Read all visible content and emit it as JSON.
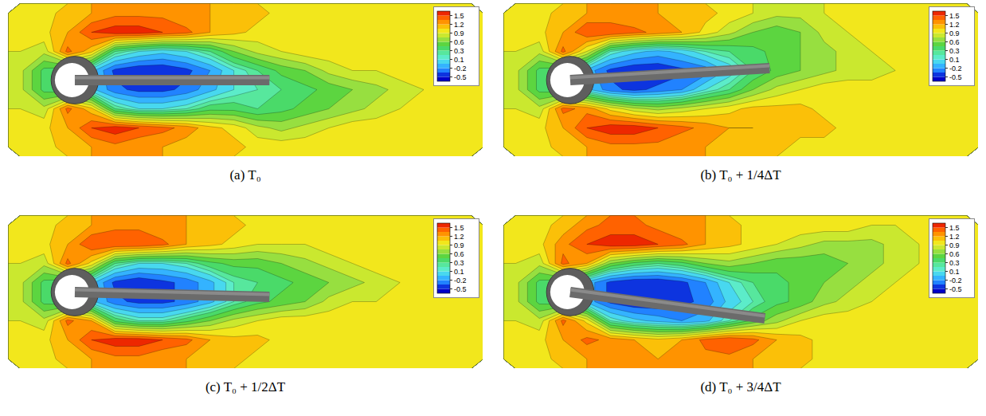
{
  "chart_data": [
    {
      "type": "contour",
      "caption": "(a) T₀",
      "xlim": [
        0,
        10
      ],
      "ylim": [
        -1.6,
        1.6
      ],
      "tick_labels": false,
      "cylinder": {
        "x": 1.4,
        "y": 0,
        "r": 0.5
      },
      "plate": {
        "x0": 1.4,
        "y0": 0,
        "x1": 5.5,
        "y1": 0.0
      },
      "values": [
        [
          1.0,
          1.0,
          1.1,
          1.2,
          1.3,
          1.3,
          1.3,
          1.2,
          1.2,
          1.1,
          1.1,
          1.0,
          1.0,
          1.0,
          1.0,
          1.0,
          1.0,
          1.0,
          1.0,
          1.0
        ],
        [
          1.0,
          1.0,
          1.2,
          1.5,
          1.6,
          1.6,
          1.5,
          1.4,
          1.2,
          1.1,
          1.0,
          1.0,
          1.0,
          1.0,
          1.0,
          1.0,
          1.0,
          1.0,
          1.0,
          1.0
        ],
        [
          0.9,
          0.8,
          1.4,
          1.1,
          0.3,
          0.1,
          0.0,
          0.1,
          0.3,
          0.6,
          0.8,
          0.9,
          1.0,
          1.0,
          1.0,
          1.0,
          1.0,
          1.0,
          1.0,
          1.0
        ],
        [
          0.8,
          0.4,
          0.3,
          0.0,
          -0.4,
          -0.5,
          -0.5,
          -0.4,
          -0.2,
          0.1,
          0.3,
          0.5,
          0.6,
          0.8,
          0.9,
          0.9,
          1.0,
          1.0,
          1.0,
          1.0
        ],
        [
          0.8,
          0.4,
          0.3,
          0.0,
          -0.3,
          -0.4,
          -0.4,
          -0.3,
          -0.1,
          0.1,
          0.2,
          0.3,
          0.4,
          0.5,
          0.6,
          0.7,
          0.8,
          0.9,
          0.9,
          1.0
        ],
        [
          0.9,
          0.8,
          1.4,
          1.1,
          0.3,
          0.1,
          0.1,
          0.2,
          0.4,
          0.4,
          0.3,
          0.4,
          0.5,
          0.6,
          0.7,
          0.8,
          0.9,
          0.9,
          1.0,
          1.0
        ],
        [
          1.0,
          1.0,
          1.2,
          1.5,
          1.6,
          1.5,
          1.4,
          1.3,
          1.1,
          1.0,
          0.8,
          0.7,
          0.8,
          0.9,
          1.0,
          1.0,
          1.0,
          1.0,
          1.0,
          1.0
        ],
        [
          1.0,
          1.0,
          1.1,
          1.2,
          1.3,
          1.2,
          1.2,
          1.1,
          1.1,
          1.1,
          1.0,
          1.0,
          1.0,
          1.0,
          1.0,
          1.0,
          1.0,
          1.0,
          1.0,
          1.0
        ]
      ],
      "colorbar": {
        "range": [
          -0.6,
          1.6
        ],
        "ticks": [
          1.5,
          1.2,
          0.9,
          0.6,
          0.3,
          0.1,
          -0.2,
          -0.5
        ],
        "levels": [
          -0.5,
          -0.35,
          -0.2,
          -0.05,
          0.1,
          0.2,
          0.3,
          0.45,
          0.6,
          0.75,
          0.9,
          1.05,
          1.2,
          1.35,
          1.5
        ],
        "colors": [
          "#0000c8",
          "#2080ff",
          "#40d0ff",
          "#60f0c0",
          "#40d040",
          "#a0e040",
          "#f0f020",
          "#ffb000",
          "#ff6000",
          "#e00000"
        ]
      }
    },
    {
      "type": "contour",
      "caption": "(b) T₀ + 1/4ΔT",
      "xlim": [
        0,
        10
      ],
      "ylim": [
        -1.6,
        1.6
      ],
      "tick_labels": false,
      "cylinder": {
        "x": 1.4,
        "y": 0,
        "r": 0.5
      },
      "plate": {
        "x0": 1.4,
        "y0": 0,
        "x1": 5.6,
        "y1": 0.25
      },
      "values": [
        [
          1.0,
          1.0,
          1.1,
          1.2,
          1.2,
          1.2,
          1.2,
          1.1,
          1.1,
          1.0,
          0.9,
          0.8,
          0.8,
          0.9,
          1.0,
          1.0,
          1.0,
          1.0,
          1.0,
          1.0
        ],
        [
          1.0,
          1.0,
          1.2,
          1.5,
          1.5,
          1.4,
          1.3,
          1.2,
          1.0,
          0.8,
          0.6,
          0.5,
          0.6,
          0.8,
          0.9,
          1.0,
          1.0,
          1.0,
          1.0,
          1.0
        ],
        [
          0.9,
          0.8,
          1.4,
          0.9,
          0.2,
          0.0,
          -0.1,
          0.0,
          0.2,
          0.3,
          0.4,
          0.5,
          0.6,
          0.7,
          0.8,
          0.9,
          0.9,
          1.0,
          1.0,
          1.0
        ],
        [
          0.8,
          0.4,
          0.3,
          -0.1,
          -0.4,
          -0.5,
          -0.5,
          -0.4,
          -0.3,
          0.0,
          0.3,
          0.5,
          0.6,
          0.7,
          0.8,
          0.8,
          0.9,
          1.0,
          1.0,
          1.0
        ],
        [
          0.8,
          0.4,
          0.3,
          0.0,
          -0.3,
          -0.4,
          -0.3,
          -0.2,
          0.1,
          0.3,
          0.6,
          0.8,
          0.9,
          1.0,
          1.0,
          1.0,
          1.0,
          1.0,
          1.0,
          1.0
        ],
        [
          0.9,
          0.8,
          1.4,
          1.3,
          1.0,
          0.8,
          0.7,
          0.8,
          0.9,
          1.0,
          1.1,
          1.1,
          1.1,
          1.0,
          1.0,
          1.0,
          1.0,
          1.0,
          1.0,
          1.0
        ],
        [
          1.0,
          1.0,
          1.2,
          1.5,
          1.6,
          1.6,
          1.5,
          1.4,
          1.3,
          1.2,
          1.2,
          1.1,
          1.1,
          1.1,
          1.0,
          1.0,
          1.0,
          1.0,
          1.0,
          1.0
        ],
        [
          1.0,
          1.0,
          1.1,
          1.2,
          1.3,
          1.3,
          1.3,
          1.2,
          1.2,
          1.1,
          1.1,
          1.1,
          1.0,
          1.0,
          1.0,
          1.0,
          1.0,
          1.0,
          1.0,
          1.0
        ]
      ],
      "colorbar": {
        "range": [
          -0.6,
          1.6
        ],
        "ticks": [
          1.5,
          1.2,
          0.9,
          0.6,
          0.3,
          0.1,
          -0.2,
          -0.5
        ],
        "levels": [
          -0.5,
          -0.35,
          -0.2,
          -0.05,
          0.1,
          0.2,
          0.3,
          0.45,
          0.6,
          0.75,
          0.9,
          1.05,
          1.2,
          1.35,
          1.5
        ],
        "colors": [
          "#0000c8",
          "#2080ff",
          "#40d0ff",
          "#60f0c0",
          "#40d040",
          "#a0e040",
          "#f0f020",
          "#ffb000",
          "#ff6000",
          "#e00000"
        ]
      }
    },
    {
      "type": "contour",
      "caption": "(c) T₀ + 1/2ΔT",
      "xlim": [
        0,
        10
      ],
      "ylim": [
        -1.6,
        1.6
      ],
      "tick_labels": false,
      "cylinder": {
        "x": 1.4,
        "y": 0,
        "r": 0.5
      },
      "plate": {
        "x0": 1.4,
        "y0": 0,
        "x1": 5.5,
        "y1": -0.1
      },
      "values": [
        [
          1.0,
          1.0,
          1.1,
          1.2,
          1.3,
          1.3,
          1.2,
          1.2,
          1.1,
          1.1,
          1.0,
          1.0,
          1.0,
          1.0,
          1.0,
          1.0,
          1.0,
          1.0,
          1.0,
          1.0
        ],
        [
          1.0,
          1.0,
          1.2,
          1.5,
          1.5,
          1.5,
          1.4,
          1.2,
          1.1,
          1.0,
          0.9,
          0.9,
          0.9,
          1.0,
          1.0,
          1.0,
          1.0,
          1.0,
          1.0,
          1.0
        ],
        [
          0.9,
          0.8,
          1.4,
          1.0,
          0.3,
          0.1,
          0.1,
          0.2,
          0.4,
          0.5,
          0.5,
          0.6,
          0.7,
          0.8,
          0.9,
          1.0,
          1.0,
          1.0,
          1.0,
          1.0
        ],
        [
          0.8,
          0.4,
          0.3,
          0.0,
          -0.4,
          -0.5,
          -0.4,
          -0.3,
          -0.1,
          0.2,
          0.3,
          0.4,
          0.5,
          0.6,
          0.7,
          0.8,
          0.9,
          1.0,
          1.0,
          1.0
        ],
        [
          0.8,
          0.4,
          0.3,
          0.0,
          -0.3,
          -0.4,
          -0.4,
          -0.3,
          -0.1,
          0.2,
          0.4,
          0.5,
          0.6,
          0.8,
          0.9,
          0.9,
          1.0,
          1.0,
          1.0,
          1.0
        ],
        [
          0.9,
          0.8,
          1.4,
          1.2,
          0.4,
          0.2,
          0.2,
          0.4,
          0.6,
          0.8,
          0.9,
          1.0,
          1.0,
          1.0,
          1.0,
          1.0,
          1.0,
          1.0,
          1.0,
          1.0
        ],
        [
          1.0,
          1.0,
          1.2,
          1.5,
          1.6,
          1.6,
          1.5,
          1.4,
          1.2,
          1.1,
          1.1,
          1.0,
          1.0,
          1.0,
          1.0,
          1.0,
          1.0,
          1.0,
          1.0,
          1.0
        ],
        [
          1.0,
          1.0,
          1.1,
          1.2,
          1.3,
          1.3,
          1.2,
          1.2,
          1.1,
          1.1,
          1.0,
          1.0,
          1.0,
          1.0,
          1.0,
          1.0,
          1.0,
          1.0,
          1.0,
          1.0
        ]
      ],
      "colorbar": {
        "range": [
          -0.6,
          1.6
        ],
        "ticks": [
          1.5,
          1.2,
          0.9,
          0.6,
          0.3,
          0.1,
          -0.2,
          -0.5
        ],
        "levels": [
          -0.5,
          -0.35,
          -0.2,
          -0.05,
          0.1,
          0.2,
          0.3,
          0.45,
          0.6,
          0.75,
          0.9,
          1.05,
          1.2,
          1.35,
          1.5
        ],
        "colors": [
          "#0000c8",
          "#2080ff",
          "#40d0ff",
          "#60f0c0",
          "#40d040",
          "#a0e040",
          "#f0f020",
          "#ffb000",
          "#ff6000",
          "#e00000"
        ]
      }
    },
    {
      "type": "contour",
      "caption": "(d) T₀ + 3/4ΔT",
      "xlim": [
        0,
        10
      ],
      "ylim": [
        -1.6,
        1.6
      ],
      "tick_labels": false,
      "cylinder": {
        "x": 1.4,
        "y": 0,
        "r": 0.5
      },
      "plate": {
        "x0": 1.4,
        "y0": 0,
        "x1": 5.5,
        "y1": -0.55
      },
      "values": [
        [
          1.0,
          1.0,
          1.1,
          1.3,
          1.4,
          1.4,
          1.3,
          1.2,
          1.2,
          1.1,
          1.0,
          1.0,
          1.0,
          1.0,
          1.0,
          0.9,
          0.9,
          0.9,
          1.0,
          1.0
        ],
        [
          1.0,
          1.0,
          1.3,
          1.5,
          1.6,
          1.6,
          1.5,
          1.4,
          1.2,
          1.1,
          1.0,
          0.9,
          0.8,
          0.7,
          0.7,
          0.7,
          0.8,
          0.9,
          1.0,
          1.0
        ],
        [
          0.9,
          0.8,
          1.4,
          1.2,
          0.6,
          0.4,
          0.3,
          0.4,
          0.6,
          0.7,
          0.6,
          0.5,
          0.5,
          0.5,
          0.6,
          0.7,
          0.8,
          0.9,
          0.9,
          1.0
        ],
        [
          0.8,
          0.4,
          0.3,
          -0.1,
          -0.4,
          -0.5,
          -0.5,
          -0.4,
          -0.2,
          0.1,
          0.3,
          0.4,
          0.5,
          0.6,
          0.7,
          0.8,
          0.9,
          0.9,
          1.0,
          1.0
        ],
        [
          0.8,
          0.4,
          0.3,
          -0.1,
          -0.4,
          -0.5,
          -0.5,
          -0.4,
          -0.3,
          0.0,
          0.2,
          0.4,
          0.5,
          0.7,
          0.8,
          0.9,
          1.0,
          1.0,
          1.0,
          1.0
        ],
        [
          0.9,
          0.8,
          1.4,
          1.0,
          0.2,
          0.0,
          -0.1,
          -0.2,
          -0.1,
          0.2,
          0.5,
          0.7,
          0.9,
          1.0,
          1.0,
          1.0,
          1.0,
          1.0,
          1.0,
          1.0
        ],
        [
          1.0,
          1.0,
          1.2,
          1.4,
          1.3,
          1.2,
          1.1,
          1.2,
          1.4,
          1.5,
          1.4,
          1.2,
          1.1,
          1.0,
          1.0,
          1.0,
          1.0,
          1.0,
          1.0,
          1.0
        ],
        [
          1.0,
          1.0,
          1.1,
          1.2,
          1.2,
          1.2,
          1.2,
          1.2,
          1.3,
          1.3,
          1.2,
          1.1,
          1.1,
          1.0,
          1.0,
          1.0,
          1.0,
          1.0,
          1.0,
          1.0
        ]
      ],
      "colorbar": {
        "range": [
          -0.6,
          1.6
        ],
        "ticks": [
          1.5,
          1.2,
          0.9,
          0.6,
          0.3,
          0.1,
          -0.2,
          -0.5
        ],
        "levels": [
          -0.5,
          -0.35,
          -0.2,
          -0.05,
          0.1,
          0.2,
          0.3,
          0.45,
          0.6,
          0.75,
          0.9,
          1.05,
          1.2,
          1.35,
          1.5
        ],
        "colors": [
          "#0000c8",
          "#2080ff",
          "#40d0ff",
          "#60f0c0",
          "#40d040",
          "#a0e040",
          "#f0f020",
          "#ffb000",
          "#ff6000",
          "#e00000"
        ]
      }
    }
  ]
}
